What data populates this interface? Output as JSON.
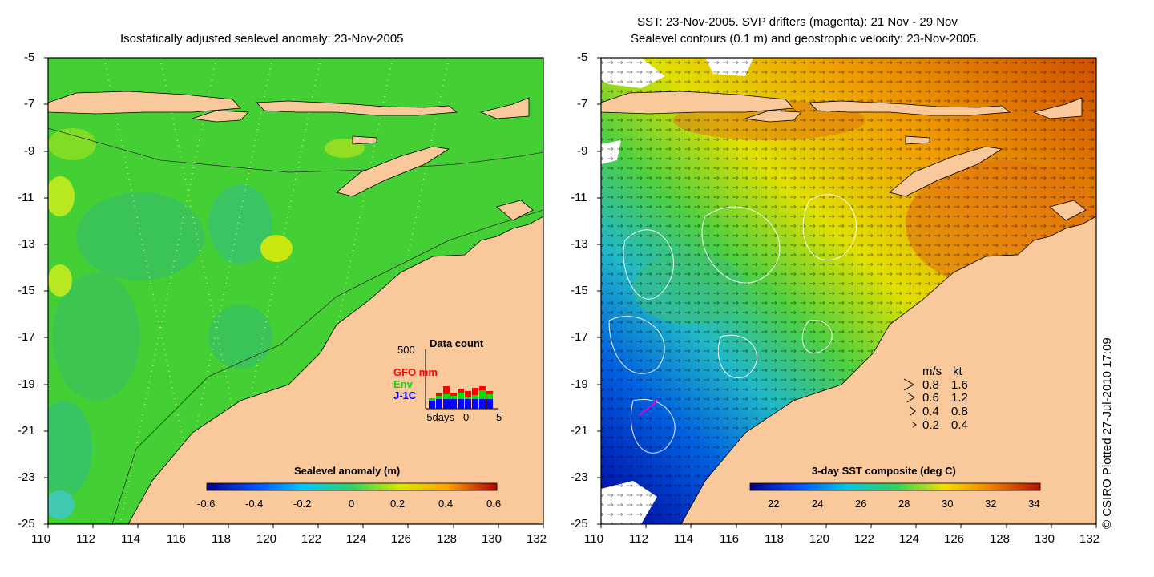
{
  "left_panel": {
    "title": "Isostatically adjusted sealevel anomaly: 23-Nov-2005",
    "colorbar_label": "Sealevel anomaly (m)",
    "colorbar_ticks": [
      "-0.6",
      "-0.4",
      "-0.2",
      "0",
      "0.2",
      "0.4",
      "0.6"
    ],
    "inset": {
      "title": "Data count",
      "ymax_label": "500",
      "legend": [
        {
          "label": "GFO mm",
          "color": "#ff0000"
        },
        {
          "label": "Env",
          "color": "#00e000"
        },
        {
          "label": "J-1C",
          "color": "#0000ff"
        }
      ],
      "x_label": "-5days",
      "x_ticks": [
        "0",
        "5"
      ]
    }
  },
  "right_panel": {
    "title_line1": "SST: 23-Nov-2005. SVP drifters (magenta): 21 Nov - 29 Nov",
    "title_line2": "Sealevel contours (0.1 m) and geostrophic velocity: 23-Nov-2005.",
    "colorbar_label": "3-day SST composite (deg C)",
    "colorbar_ticks": [
      "22",
      "24",
      "26",
      "28",
      "30",
      "32",
      "34"
    ],
    "speed_legend": {
      "header_ms": "m/s",
      "header_kt": "kt",
      "rows": [
        {
          "ms": "0.8",
          "kt": "1.6"
        },
        {
          "ms": "0.6",
          "kt": "1.2"
        },
        {
          "ms": "0.4",
          "kt": "0.8"
        },
        {
          "ms": "0.2",
          "kt": "0.4"
        }
      ]
    }
  },
  "axes": {
    "y_ticks": [
      "-5",
      "-7",
      "-9",
      "-11",
      "-13",
      "-15",
      "-17",
      "-19",
      "-21",
      "-23",
      "-25"
    ],
    "x_ticks": [
      "110",
      "112",
      "114",
      "116",
      "118",
      "120",
      "122",
      "124",
      "126",
      "128",
      "130",
      "132"
    ]
  },
  "credit": "© CSIRO Plotted 27-Jul-2010 17:09",
  "colors": {
    "land": "#f9c89b",
    "sla_background": "#44cf35",
    "sla_colormap": [
      "#000080",
      "#0050ff",
      "#00c8ff",
      "#30d060",
      "#d8e800",
      "#ffa000",
      "#b00000"
    ],
    "sst_colormap": [
      "#000080",
      "#0050ff",
      "#00c8e0",
      "#30d060",
      "#f0e000",
      "#f08000",
      "#b01000"
    ],
    "drifter": "#e000e0"
  }
}
